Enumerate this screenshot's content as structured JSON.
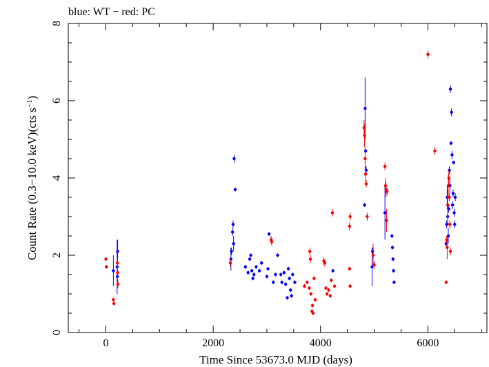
{
  "chart_data": {
    "type": "scatter",
    "title": "blue: WT − red: PC",
    "xlabel": "Time Since 53673.0 MJD (days)",
    "ylabel": "Count Rate (0.3−10.0 keV)(cts s",
    "ylabel_sup": "−1",
    "ylabel_end": ")",
    "xlim": [
      -700,
      7100
    ],
    "ylim": [
      0,
      8
    ],
    "x_ticks": [
      0,
      2000,
      4000,
      6000
    ],
    "y_ticks": [
      0,
      2,
      4,
      6,
      8
    ],
    "x_minor_step": 500,
    "y_minor_step": 0.5,
    "grid": false,
    "series": [
      {
        "name": "WT",
        "color": "#0000ff",
        "points": [
          [
            140,
            1.6,
            0.4
          ],
          [
            210,
            1.7,
            0.7
          ],
          [
            215,
            1.45,
            0.15
          ],
          [
            220,
            2.1,
            0.3
          ],
          [
            2330,
            1.9,
            0.3
          ],
          [
            2340,
            2.1,
            0.1
          ],
          [
            2360,
            2.6,
            0.1
          ],
          [
            2370,
            2.8,
            0.1
          ],
          [
            2380,
            2.3,
            0.2
          ],
          [
            2390,
            4.5,
            0.1
          ],
          [
            2410,
            3.7,
            0.05
          ],
          [
            2600,
            1.7,
            0.05
          ],
          [
            2650,
            1.55,
            0.05
          ],
          [
            2680,
            1.9,
            0.05
          ],
          [
            2700,
            2.0,
            0.05
          ],
          [
            2720,
            1.6,
            0.05
          ],
          [
            2740,
            1.4,
            0.05
          ],
          [
            2760,
            1.5,
            0.05
          ],
          [
            2800,
            1.7,
            0.05
          ],
          [
            2860,
            1.6,
            0.05
          ],
          [
            2900,
            1.8,
            0.05
          ],
          [
            3000,
            1.45,
            0.05
          ],
          [
            3020,
            1.65,
            0.05
          ],
          [
            3040,
            2.55,
            0.05
          ],
          [
            3080,
            2.4,
            0.05
          ],
          [
            3120,
            1.3,
            0.05
          ],
          [
            3160,
            1.5,
            0.05
          ],
          [
            3200,
            2.0,
            0.05
          ],
          [
            3260,
            1.5,
            0.05
          ],
          [
            3280,
            1.3,
            0.05
          ],
          [
            3320,
            1.55,
            0.05
          ],
          [
            3350,
            1.25,
            0.05
          ],
          [
            3380,
            0.9,
            0.05
          ],
          [
            3400,
            1.65,
            0.05
          ],
          [
            3420,
            1.4,
            0.05
          ],
          [
            3440,
            1.1,
            0.05
          ],
          [
            3460,
            0.95,
            0.05
          ],
          [
            3480,
            1.5,
            0.05
          ],
          [
            3520,
            1.3,
            0.05
          ],
          [
            4230,
            1.6,
            0.05
          ],
          [
            4820,
            3.3,
            0.05
          ],
          [
            4830,
            5.8,
            0.8
          ],
          [
            4840,
            4.7,
            0.05
          ],
          [
            4850,
            4.2,
            0.1
          ],
          [
            4960,
            1.7,
            0.5
          ],
          [
            4970,
            2.1,
            0.1
          ],
          [
            5200,
            3.1,
            0.7
          ],
          [
            5330,
            2.5,
            0.05
          ],
          [
            5340,
            2.2,
            0.05
          ],
          [
            5350,
            1.9,
            0.05
          ],
          [
            5360,
            1.6,
            0.05
          ],
          [
            5370,
            1.3,
            0.05
          ],
          [
            6340,
            2.3,
            0.1
          ],
          [
            6350,
            2.8,
            0.1
          ],
          [
            6360,
            3.5,
            0.3
          ],
          [
            6370,
            3.0,
            0.2
          ],
          [
            6380,
            2.5,
            0.2
          ],
          [
            6390,
            3.2,
            0.1
          ],
          [
            6400,
            4.2,
            0.1
          ],
          [
            6410,
            3.8,
            0.2
          ],
          [
            6420,
            6.3,
            0.1
          ],
          [
            6430,
            4.9,
            0.05
          ],
          [
            6440,
            5.7,
            0.1
          ],
          [
            6450,
            4.6,
            0.1
          ],
          [
            6460,
            3.3,
            0.1
          ],
          [
            6470,
            3.6,
            0.1
          ],
          [
            6480,
            4.4,
            0.05
          ],
          [
            6490,
            3.1,
            0.1
          ],
          [
            6500,
            2.8,
            0.1
          ],
          [
            6510,
            3.5,
            0.1
          ]
        ]
      },
      {
        "name": "PC",
        "color": "#ff0000",
        "points": [
          [
            0,
            1.9,
            0.05
          ],
          [
            10,
            1.7,
            0.05
          ],
          [
            140,
            0.85,
            0.05
          ],
          [
            150,
            0.75,
            0.05
          ],
          [
            215,
            1.8,
            0.1
          ],
          [
            220,
            1.55,
            0.1
          ],
          [
            225,
            1.25,
            0.1
          ],
          [
            2320,
            1.8,
            0.1
          ],
          [
            3080,
            2.4,
            0.1
          ],
          [
            3090,
            2.35,
            0.1
          ],
          [
            3700,
            1.2,
            0.05
          ],
          [
            3750,
            1.3,
            0.05
          ],
          [
            3790,
            1.15,
            0.05
          ],
          [
            3800,
            2.1,
            0.1
          ],
          [
            3810,
            1.9,
            0.1
          ],
          [
            3820,
            1.0,
            0.05
          ],
          [
            3840,
            0.55,
            0.05
          ],
          [
            3850,
            0.7,
            0.05
          ],
          [
            3860,
            0.5,
            0.05
          ],
          [
            3880,
            1.4,
            0.05
          ],
          [
            3900,
            0.85,
            0.05
          ],
          [
            4060,
            1.85,
            0.1
          ],
          [
            4080,
            1.8,
            0.1
          ],
          [
            4100,
            1.15,
            0.05
          ],
          [
            4120,
            1.0,
            0.05
          ],
          [
            4150,
            1.1,
            0.05
          ],
          [
            4180,
            0.95,
            0.05
          ],
          [
            4200,
            1.35,
            0.05
          ],
          [
            4220,
            3.1,
            0.1
          ],
          [
            4260,
            1.2,
            0.05
          ],
          [
            4540,
            2.75,
            0.1
          ],
          [
            4550,
            3.0,
            0.1
          ],
          [
            4540,
            1.65,
            0.05
          ],
          [
            4550,
            1.2,
            0.05
          ],
          [
            4810,
            5.3,
            0.2
          ],
          [
            4820,
            5.1,
            0.3
          ],
          [
            4830,
            4.5,
            0.3
          ],
          [
            4840,
            4.1,
            0.2
          ],
          [
            4850,
            3.85,
            0.1
          ],
          [
            4870,
            3.0,
            0.1
          ],
          [
            4980,
            2.0,
            0.3
          ],
          [
            5000,
            1.75,
            0.1
          ],
          [
            5200,
            4.3,
            0.1
          ],
          [
            5210,
            3.8,
            0.2
          ],
          [
            5220,
            3.7,
            0.2
          ],
          [
            5240,
            3.65,
            0.1
          ],
          [
            5230,
            2.9,
            0.3
          ],
          [
            6000,
            7.2,
            0.1
          ],
          [
            6130,
            4.7,
            0.1
          ],
          [
            6340,
            1.3,
            0.05
          ],
          [
            6350,
            2.4,
            0.1
          ],
          [
            6360,
            2.2,
            0.3
          ],
          [
            6370,
            3.3,
            0.4
          ],
          [
            6380,
            3.8,
            0.3
          ],
          [
            6390,
            4.0,
            0.2
          ],
          [
            6400,
            3.5,
            0.1
          ],
          [
            6410,
            2.8,
            0.1
          ],
          [
            6420,
            2.1,
            0.1
          ]
        ]
      }
    ]
  }
}
